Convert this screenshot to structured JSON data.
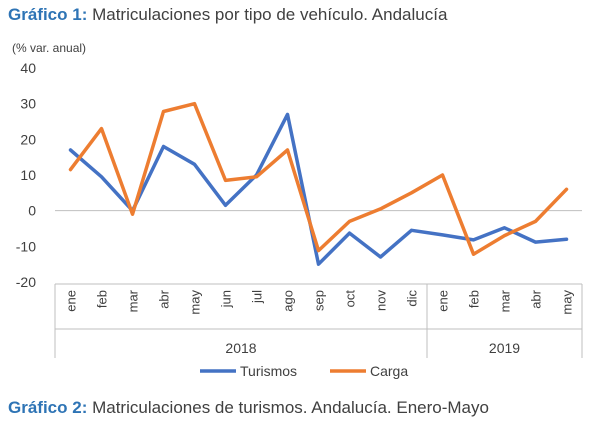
{
  "figure1": {
    "label": "Gráfico 1:",
    "title": "Matriculaciones por tipo de vehículo. Andalucía"
  },
  "figure2": {
    "label": "Gráfico 2:",
    "title": "Matriculaciones de turismos. Andalucía. Enero-Mayo"
  },
  "chart_data": {
    "type": "line",
    "ylabel": "(% var. anual)",
    "ylim": [
      -20,
      40
    ],
    "yticks": [
      -20,
      -10,
      0,
      10,
      20,
      30,
      40
    ],
    "grid": false,
    "legend_position": "bottom",
    "categories": [
      "ene",
      "feb",
      "mar",
      "abr",
      "may",
      "jun",
      "jul",
      "ago",
      "sep",
      "oct",
      "nov",
      "dic",
      "ene",
      "feb",
      "mar",
      "abr",
      "may"
    ],
    "year_groups": [
      {
        "label": "2018",
        "count": 12
      },
      {
        "label": "2019",
        "count": 5
      }
    ],
    "series": [
      {
        "name": "Turismos",
        "color": "#4472C4",
        "values": [
          17,
          9.5,
          0,
          18,
          13,
          1.5,
          10,
          27,
          -15,
          -6.3,
          -13,
          -5.5,
          -6.8,
          -8.2,
          -4.8,
          -8.8,
          -8
        ]
      },
      {
        "name": "Carga",
        "color": "#ED7D31",
        "values": [
          11.5,
          23,
          -1,
          27.8,
          30,
          8.5,
          9.5,
          17,
          -11.2,
          -3,
          0.5,
          5,
          10,
          -12.2,
          -7,
          -3,
          6
        ]
      }
    ]
  }
}
